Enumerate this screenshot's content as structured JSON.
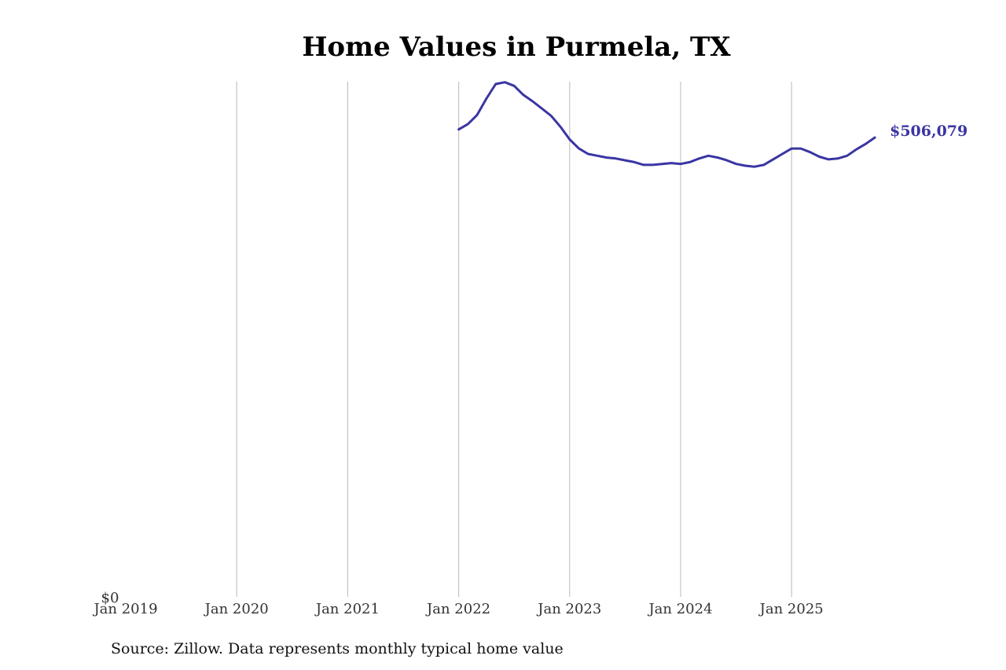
{
  "chart_data": {
    "type": "line",
    "title": "Home Values in Purmela, TX",
    "xlabel": "",
    "ylabel": "",
    "x_tick_labels": [
      "Jan 2019",
      "Jan 2020",
      "Jan 2021",
      "Jan 2022",
      "Jan 2023",
      "Jan 2024",
      "Jan 2025"
    ],
    "y_tick_labels": [
      "$0"
    ],
    "ylim": [
      0,
      565000
    ],
    "grid": "vertical gridlines at year ticks",
    "line_color": "#3a35a3",
    "end_label": "$506,079",
    "source": "Source: Zillow. Data represents monthly typical home value",
    "series": [
      {
        "x": [
          "2022-01",
          "2022-02",
          "2022-03",
          "2022-04",
          "2022-05",
          "2022-06",
          "2022-07",
          "2022-08",
          "2022-09",
          "2022-10",
          "2022-11",
          "2022-12",
          "2023-01",
          "2023-02",
          "2023-03",
          "2023-04",
          "2023-05",
          "2023-06",
          "2023-07",
          "2023-08",
          "2023-09",
          "2023-10",
          "2023-11",
          "2023-12",
          "2024-01",
          "2024-02",
          "2024-03",
          "2024-04",
          "2024-05",
          "2024-06",
          "2024-07",
          "2024-08",
          "2024-09",
          "2024-10",
          "2024-11",
          "2024-12",
          "2025-01",
          "2025-02",
          "2025-03",
          "2025-04",
          "2025-05",
          "2025-06",
          "2025-07",
          "2025-08",
          "2025-09",
          "2025-10"
        ],
        "values": [
          515000,
          521000,
          531000,
          549000,
          565000,
          567000,
          563000,
          553000,
          546000,
          538000,
          530000,
          518000,
          504000,
          494000,
          488000,
          486000,
          484000,
          483000,
          481000,
          479000,
          476000,
          476000,
          477000,
          478000,
          477000,
          479000,
          483000,
          486000,
          484000,
          481000,
          477000,
          475000,
          474000,
          476000,
          482000,
          488000,
          494000,
          494000,
          490000,
          485000,
          482000,
          483000,
          486000,
          493000,
          499000,
          506079
        ]
      }
    ]
  }
}
